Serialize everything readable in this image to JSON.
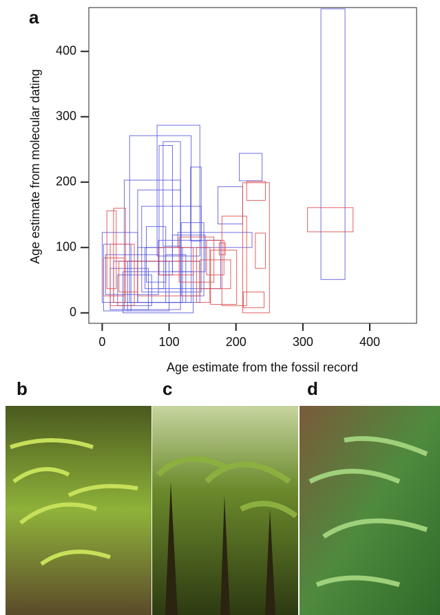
{
  "chart_data": {
    "type": "rectangle",
    "panel_label": "a",
    "xlabel": "Age estimate from the fossil record",
    "ylabel": "Age estimate from molecular dating",
    "xlim": [
      -20,
      470
    ],
    "ylim": [
      -16,
      467
    ],
    "xticks": [
      0,
      100,
      200,
      300,
      400
    ],
    "yticks": [
      0,
      100,
      200,
      300,
      400
    ],
    "series": [
      {
        "color": "#5555dd",
        "values": [
          [
            327,
            363,
            51,
            465
          ],
          [
            205,
            239,
            202,
            244
          ],
          [
            173,
            210,
            136,
            193
          ],
          [
            82,
            146,
            87,
            287
          ],
          [
            41,
            133,
            16,
            271
          ],
          [
            85,
            105,
            58,
            256
          ],
          [
            91,
            117,
            102,
            262
          ],
          [
            132,
            148,
            110,
            223
          ],
          [
            33,
            117,
            5,
            203
          ],
          [
            53,
            117,
            16,
            188
          ],
          [
            59,
            148,
            32,
            163
          ],
          [
            118,
            152,
            26,
            138
          ],
          [
            113,
            224,
            100,
            123
          ],
          [
            84,
            177,
            37,
            111
          ],
          [
            0,
            53,
            16,
            123
          ],
          [
            2,
            43,
            3,
            105
          ],
          [
            5,
            84,
            28,
            89
          ],
          [
            17,
            146,
            16,
            79
          ],
          [
            12,
            69,
            5,
            68
          ],
          [
            38,
            100,
            3,
            79
          ],
          [
            53,
            120,
            16,
            100
          ],
          [
            66,
            95,
            47,
            132
          ],
          [
            95,
            125,
            16,
            89
          ],
          [
            23,
            74,
            11,
            58
          ],
          [
            31,
            136,
            0,
            63
          ],
          [
            64,
            92,
            37,
            100
          ],
          [
            105,
            154,
            63,
            119
          ]
        ]
      },
      {
        "color": "#dd4444",
        "values": [
          [
            307,
            375,
            124,
            161
          ],
          [
            210,
            250,
            0,
            199
          ],
          [
            216,
            244,
            172,
            201
          ],
          [
            229,
            244,
            68,
            122
          ],
          [
            211,
            242,
            8,
            32
          ],
          [
            179,
            216,
            11,
            148
          ],
          [
            162,
            201,
            13,
            96
          ],
          [
            175,
            184,
            89,
            107
          ],
          [
            7,
            21,
            37,
            156
          ],
          [
            17,
            35,
            16,
            160
          ],
          [
            2,
            33,
            26,
            84
          ],
          [
            12,
            48,
            11,
            105
          ],
          [
            25,
            53,
            32,
            79
          ],
          [
            53,
            146,
            26,
            79
          ],
          [
            115,
            167,
            47,
            116
          ],
          [
            84,
            136,
            58,
            100
          ],
          [
            146,
            192,
            37,
            81
          ],
          [
            141,
            161,
            16,
            100
          ],
          [
            156,
            182,
            58,
            111
          ]
        ]
      }
    ]
  },
  "photos": [
    {
      "label": "b"
    },
    {
      "label": "c"
    },
    {
      "label": "d"
    }
  ]
}
